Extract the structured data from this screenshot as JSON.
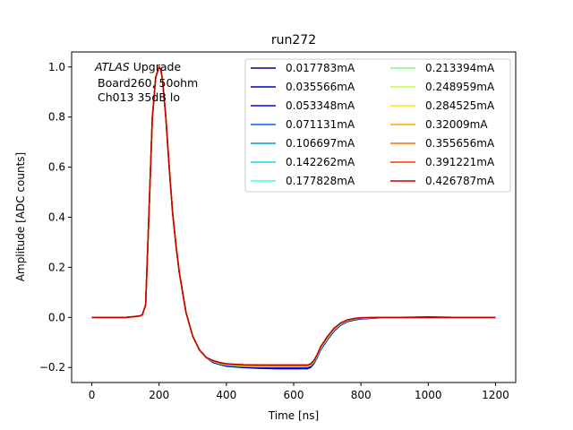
{
  "chart_data": {
    "type": "line",
    "title": "run272",
    "xlabel": "Time [ns]",
    "ylabel": "Amplitude [ADC counts]",
    "xlim": [
      -60,
      1260
    ],
    "ylim": [
      -0.26,
      1.06
    ],
    "xticks": [
      0,
      200,
      400,
      600,
      800,
      1000,
      1200
    ],
    "xtick_labels": [
      "0",
      "200",
      "400",
      "600",
      "800",
      "1000",
      "1200"
    ],
    "yticks": [
      -0.2,
      0.0,
      0.2,
      0.4,
      0.6,
      0.8,
      1.0
    ],
    "ytick_labels": [
      "−0.2",
      "0.0",
      "0.2",
      "0.4",
      "0.6",
      "0.8",
      "1.0"
    ],
    "grid": false,
    "legend_position": "top-right",
    "legend_columns": 2,
    "annotation": {
      "line1_italic": "ATLAS",
      "line1_rest": " Upgrade",
      "line2": "Board260, 50ohm",
      "line3": "Ch013 35dB lo"
    },
    "x": [
      0,
      100,
      140,
      150,
      160,
      170,
      180,
      190,
      200,
      205,
      210,
      220,
      230,
      240,
      250,
      260,
      280,
      300,
      320,
      340,
      360,
      380,
      400,
      450,
      500,
      550,
      600,
      620,
      630,
      640,
      650,
      660,
      670,
      680,
      700,
      720,
      740,
      760,
      780,
      800,
      850,
      900,
      1000,
      1100,
      1200
    ],
    "series": [
      {
        "name": "0.017783mA",
        "color": "#00007f",
        "values": [
          0,
          0,
          0.005,
          0.01,
          0.05,
          0.42,
          0.8,
          0.96,
          1.0,
          0.99,
          0.95,
          0.8,
          0.6,
          0.42,
          0.29,
          0.18,
          0.02,
          -0.075,
          -0.13,
          -0.16,
          -0.18,
          -0.188,
          -0.195,
          -0.2,
          -0.203,
          -0.205,
          -0.205,
          -0.205,
          -0.205,
          -0.205,
          -0.2,
          -0.185,
          -0.16,
          -0.13,
          -0.09,
          -0.055,
          -0.03,
          -0.017,
          -0.01,
          -0.006,
          -0.002,
          0,
          0.002,
          0,
          0
        ]
      },
      {
        "name": "0.035566mA",
        "color": "#0000c8",
        "values": [
          0,
          0,
          0.005,
          0.01,
          0.05,
          0.42,
          0.8,
          0.96,
          1.0,
          0.99,
          0.95,
          0.8,
          0.6,
          0.42,
          0.29,
          0.18,
          0.02,
          -0.075,
          -0.13,
          -0.16,
          -0.178,
          -0.187,
          -0.193,
          -0.198,
          -0.2,
          -0.2,
          -0.2,
          -0.2,
          -0.2,
          -0.2,
          -0.196,
          -0.182,
          -0.158,
          -0.128,
          -0.088,
          -0.053,
          -0.029,
          -0.016,
          -0.009,
          -0.005,
          -0.002,
          0,
          0,
          0,
          0
        ]
      },
      {
        "name": "0.053348mA",
        "color": "#0000ff",
        "values": [
          0,
          0,
          0.005,
          0.01,
          0.05,
          0.42,
          0.8,
          0.96,
          1.0,
          0.99,
          0.95,
          0.8,
          0.6,
          0.42,
          0.29,
          0.18,
          0.02,
          -0.075,
          -0.13,
          -0.16,
          -0.177,
          -0.186,
          -0.192,
          -0.197,
          -0.199,
          -0.199,
          -0.199,
          -0.199,
          -0.199,
          -0.199,
          -0.195,
          -0.181,
          -0.157,
          -0.127,
          -0.087,
          -0.052,
          -0.028,
          -0.015,
          -0.008,
          -0.004,
          -0.001,
          0,
          0,
          0,
          0
        ]
      },
      {
        "name": "0.071131mA",
        "color": "#0060ff",
        "values": [
          0,
          0,
          0.005,
          0.01,
          0.05,
          0.42,
          0.8,
          0.96,
          1.0,
          0.99,
          0.95,
          0.8,
          0.6,
          0.42,
          0.29,
          0.18,
          0.02,
          -0.075,
          -0.13,
          -0.16,
          -0.176,
          -0.185,
          -0.191,
          -0.196,
          -0.198,
          -0.198,
          -0.198,
          -0.198,
          -0.198,
          -0.198,
          -0.194,
          -0.18,
          -0.156,
          -0.126,
          -0.086,
          -0.051,
          -0.027,
          -0.014,
          -0.007,
          -0.004,
          -0.001,
          0,
          0,
          0,
          0
        ]
      },
      {
        "name": "0.106697mA",
        "color": "#0098d8",
        "values": [
          0,
          0,
          0.005,
          0.01,
          0.05,
          0.42,
          0.8,
          0.96,
          1.0,
          0.99,
          0.95,
          0.8,
          0.6,
          0.42,
          0.29,
          0.18,
          0.02,
          -0.075,
          -0.13,
          -0.16,
          -0.176,
          -0.185,
          -0.19,
          -0.195,
          -0.197,
          -0.197,
          -0.197,
          -0.197,
          -0.197,
          -0.197,
          -0.193,
          -0.179,
          -0.155,
          -0.125,
          -0.085,
          -0.05,
          -0.027,
          -0.014,
          -0.007,
          -0.003,
          -0.001,
          0,
          0,
          0,
          0
        ]
      },
      {
        "name": "0.142262mA",
        "color": "#1ad0ff",
        "values": [
          0,
          0,
          0.005,
          0.01,
          0.05,
          0.42,
          0.8,
          0.96,
          1.0,
          0.99,
          0.95,
          0.8,
          0.6,
          0.42,
          0.29,
          0.18,
          0.02,
          -0.075,
          -0.13,
          -0.16,
          -0.175,
          -0.184,
          -0.19,
          -0.195,
          -0.196,
          -0.196,
          -0.196,
          -0.196,
          -0.196,
          -0.196,
          -0.192,
          -0.178,
          -0.154,
          -0.124,
          -0.084,
          -0.05,
          -0.026,
          -0.013,
          -0.006,
          -0.003,
          -0.001,
          0,
          0,
          0,
          0
        ]
      },
      {
        "name": "0.177828mA",
        "color": "#4cffcc",
        "values": [
          0,
          0,
          0.005,
          0.01,
          0.05,
          0.42,
          0.8,
          0.96,
          1.0,
          0.99,
          0.95,
          0.8,
          0.6,
          0.42,
          0.29,
          0.18,
          0.02,
          -0.075,
          -0.13,
          -0.16,
          -0.175,
          -0.184,
          -0.189,
          -0.194,
          -0.195,
          -0.195,
          -0.195,
          -0.195,
          -0.195,
          -0.195,
          -0.191,
          -0.177,
          -0.153,
          -0.123,
          -0.083,
          -0.049,
          -0.026,
          -0.013,
          -0.006,
          -0.003,
          -0.001,
          0,
          0,
          0,
          0
        ]
      },
      {
        "name": "0.213394mA",
        "color": "#7dff7a",
        "values": [
          0,
          0,
          0.005,
          0.01,
          0.05,
          0.42,
          0.8,
          0.96,
          1.0,
          0.99,
          0.95,
          0.8,
          0.6,
          0.42,
          0.29,
          0.18,
          0.02,
          -0.075,
          -0.13,
          -0.16,
          -0.175,
          -0.183,
          -0.189,
          -0.193,
          -0.195,
          -0.195,
          -0.195,
          -0.195,
          -0.195,
          -0.195,
          -0.19,
          -0.176,
          -0.152,
          -0.122,
          -0.082,
          -0.048,
          -0.025,
          -0.012,
          -0.006,
          -0.003,
          -0.001,
          0,
          0,
          0,
          0
        ]
      },
      {
        "name": "0.248959mA",
        "color": "#c1ff36",
        "values": [
          0,
          0,
          0.005,
          0.01,
          0.05,
          0.42,
          0.8,
          0.96,
          1.0,
          0.99,
          0.95,
          0.8,
          0.6,
          0.42,
          0.29,
          0.18,
          0.02,
          -0.075,
          -0.13,
          -0.16,
          -0.174,
          -0.183,
          -0.188,
          -0.193,
          -0.194,
          -0.194,
          -0.194,
          -0.194,
          -0.194,
          -0.194,
          -0.19,
          -0.176,
          -0.152,
          -0.121,
          -0.081,
          -0.047,
          -0.024,
          -0.012,
          -0.005,
          -0.002,
          -0.001,
          0,
          0,
          0,
          0
        ]
      },
      {
        "name": "0.284525mA",
        "color": "#ffe600",
        "values": [
          0,
          0,
          0.005,
          0.01,
          0.05,
          0.42,
          0.8,
          0.96,
          1.0,
          0.99,
          0.95,
          0.8,
          0.6,
          0.42,
          0.29,
          0.18,
          0.02,
          -0.075,
          -0.13,
          -0.16,
          -0.174,
          -0.182,
          -0.188,
          -0.192,
          -0.193,
          -0.193,
          -0.193,
          -0.193,
          -0.193,
          -0.193,
          -0.189,
          -0.175,
          -0.151,
          -0.12,
          -0.08,
          -0.046,
          -0.024,
          -0.011,
          -0.005,
          -0.002,
          0,
          0,
          0,
          0,
          0
        ]
      },
      {
        "name": "0.32009mA",
        "color": "#ffaa00",
        "values": [
          0,
          0,
          0.005,
          0.01,
          0.05,
          0.42,
          0.8,
          0.96,
          1.0,
          0.99,
          0.95,
          0.8,
          0.6,
          0.42,
          0.29,
          0.18,
          0.02,
          -0.075,
          -0.13,
          -0.16,
          -0.173,
          -0.182,
          -0.187,
          -0.191,
          -0.192,
          -0.192,
          -0.192,
          -0.192,
          -0.192,
          -0.192,
          -0.188,
          -0.174,
          -0.15,
          -0.119,
          -0.079,
          -0.045,
          -0.023,
          -0.011,
          -0.005,
          -0.002,
          0,
          0,
          0,
          0,
          0
        ]
      },
      {
        "name": "0.355656mA",
        "color": "#ff7000",
        "values": [
          0,
          0,
          0.005,
          0.01,
          0.05,
          0.42,
          0.8,
          0.96,
          1.0,
          0.99,
          0.95,
          0.8,
          0.6,
          0.42,
          0.29,
          0.18,
          0.02,
          -0.075,
          -0.13,
          -0.16,
          -0.173,
          -0.181,
          -0.187,
          -0.191,
          -0.192,
          -0.192,
          -0.192,
          -0.192,
          -0.192,
          -0.192,
          -0.188,
          -0.174,
          -0.15,
          -0.119,
          -0.079,
          -0.045,
          -0.023,
          -0.011,
          -0.005,
          -0.002,
          0,
          0,
          0,
          0,
          0
        ]
      },
      {
        "name": "0.391221mA",
        "color": "#ff3000",
        "values": [
          0,
          0,
          0.005,
          0.01,
          0.05,
          0.42,
          0.8,
          0.96,
          1.0,
          0.99,
          0.95,
          0.8,
          0.6,
          0.42,
          0.29,
          0.18,
          0.02,
          -0.075,
          -0.13,
          -0.16,
          -0.173,
          -0.181,
          -0.186,
          -0.19,
          -0.191,
          -0.191,
          -0.191,
          -0.191,
          -0.191,
          -0.191,
          -0.187,
          -0.173,
          -0.149,
          -0.118,
          -0.078,
          -0.044,
          -0.022,
          -0.01,
          -0.004,
          -0.002,
          0,
          0,
          0,
          0,
          0
        ]
      },
      {
        "name": "0.426787mA",
        "color": "#c40000",
        "values": [
          0,
          0,
          0.005,
          0.01,
          0.05,
          0.42,
          0.8,
          0.96,
          1.0,
          0.99,
          0.95,
          0.8,
          0.6,
          0.42,
          0.29,
          0.18,
          0.02,
          -0.075,
          -0.13,
          -0.16,
          -0.172,
          -0.18,
          -0.185,
          -0.189,
          -0.19,
          -0.19,
          -0.19,
          -0.19,
          -0.19,
          -0.19,
          -0.186,
          -0.172,
          -0.148,
          -0.117,
          -0.077,
          -0.043,
          -0.022,
          -0.01,
          -0.004,
          -0.001,
          0,
          0,
          0,
          0,
          0
        ]
      }
    ]
  }
}
